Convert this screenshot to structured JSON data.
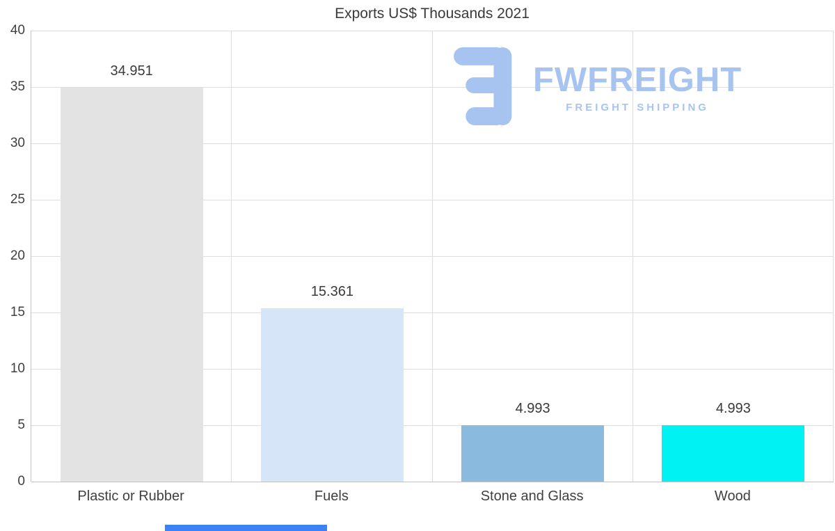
{
  "logo": {
    "brand": "FWFREIGHT",
    "tagline": "FREIGHT SHIPPING",
    "color": "#a7c4f1"
  },
  "chart_data": {
    "type": "bar",
    "title": "Exports US$ Thousands 2021",
    "categories": [
      "Plastic or Rubber",
      "Fuels",
      "Stone and Glass",
      "Wood"
    ],
    "values": [
      34.951,
      15.361,
      4.993,
      4.993
    ],
    "value_labels": [
      "34.951",
      "15.361",
      "4.993",
      "4.993"
    ],
    "bar_colors": [
      "#e3e3e3",
      "#d6e6f8",
      "#8abade",
      "#00f2f2"
    ],
    "xlabel": "",
    "ylabel": "",
    "ylim": [
      0,
      40
    ],
    "yticks": [
      0,
      5,
      10,
      15,
      20,
      25,
      30,
      35,
      40
    ],
    "grid": "on",
    "legend": "none"
  }
}
